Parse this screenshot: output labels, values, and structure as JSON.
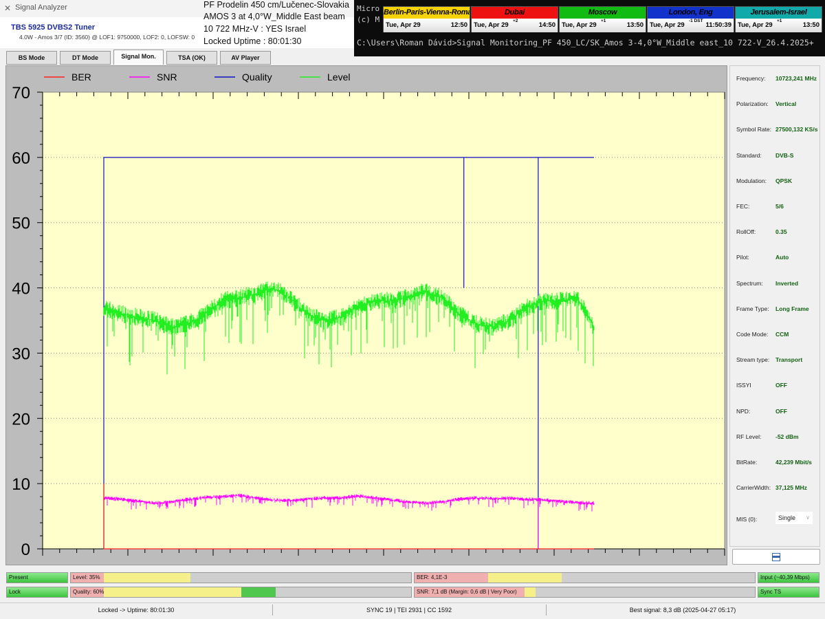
{
  "window": {
    "title": "Signal Analyzer",
    "icon": "satellite-icon"
  },
  "header": {
    "tuner": "TBS 5925 DVBS2 Tuner",
    "tuner_info": "4.0W - Amos 3/7 (ID: 3560) @ LOF1: 9750000, LOF2: 0, LOFSW: 0",
    "lines": [
      "PF Prodelin 450 cm/Lučenec-Slovakia",
      "AMOS 3 at 4,0°W_Middle East beam",
      "10 722 MHz-V : YES Israel",
      "Locked Uptime : 80:01:30"
    ]
  },
  "tabs": [
    {
      "label": "BS Mode"
    },
    {
      "label": "DT Mode"
    },
    {
      "label": "Signal Mon.",
      "active": true
    },
    {
      "label": "TSA (OK)"
    },
    {
      "label": "AV Player"
    }
  ],
  "terminal": {
    "lines": [
      "Micro",
      "(c) M"
    ],
    "prompt": "C:\\Users\\Roman Dávid>Signal Monitoring_PF 450_LC/SK_Amos 3-4,0°W_Middle east_10 722-V_26.4.2025+",
    "clocks": [
      {
        "city": "Berlin-Paris-Vienna-Roma",
        "date": "Tue, Apr 29",
        "time": "12:50",
        "offset": "",
        "color": "#f5d200",
        "text": "#000"
      },
      {
        "city": "Dubai",
        "date": "Tue, Apr 29",
        "time": "14:50",
        "offset": "+2",
        "color": "#ee1111",
        "text": "#000"
      },
      {
        "city": "Moscow",
        "date": "Tue, Apr 29",
        "time": "13:50",
        "offset": "+1",
        "color": "#11bb11",
        "text": "#000"
      },
      {
        "city": "London, Eng",
        "date": "Tue, Apr 29",
        "time": "11:50:39",
        "offset": "-1 DST",
        "color": "#1133cc",
        "text": "#000"
      },
      {
        "city": "Jerusalem-Israel",
        "date": "Tue, Apr 29",
        "time": "13:50",
        "offset": "+1",
        "color": "#11aaaa",
        "text": "#000"
      }
    ]
  },
  "chart_data": {
    "type": "line",
    "title": "",
    "xlabel": "",
    "ylabel": "",
    "ylim": [
      0,
      70
    ],
    "yticks": [
      0,
      10,
      20,
      30,
      40,
      50,
      60,
      70
    ],
    "grid": "horizontal dotted",
    "legend_position": "top-left",
    "background": "#ffffcc",
    "series": [
      {
        "name": "BER",
        "color": "#ff2020",
        "x": [
          0,
          0,
          0,
          29
        ],
        "y": [
          10,
          0,
          0,
          0
        ]
      },
      {
        "name": "SNR",
        "color": "#ff00ff",
        "x": [
          0,
          1,
          2,
          3,
          4,
          5,
          6,
          7,
          8,
          9,
          10,
          11,
          12,
          13,
          14,
          15,
          16,
          17,
          18,
          19,
          20,
          21,
          22,
          23,
          24,
          25,
          25.7,
          25.7,
          25.7,
          26,
          27,
          28,
          29
        ],
        "y": [
          7.8,
          7.6,
          7.3,
          7.0,
          7.2,
          7.6,
          7.9,
          8.0,
          8.2,
          7.8,
          7.5,
          7.4,
          7.6,
          7.8,
          7.8,
          8.1,
          7.8,
          7.5,
          7.2,
          7.0,
          7.2,
          7.6,
          7.8,
          7.7,
          7.8,
          7.6,
          7.6,
          0,
          7.6,
          7.5,
          7.3,
          7.1,
          7.0
        ]
      },
      {
        "name": "Quality",
        "color": "#1010c0",
        "x": [
          0,
          0,
          21.3,
          21.3,
          21.3,
          25.7,
          25.7,
          25.7,
          29
        ],
        "y": [
          0,
          60,
          60,
          40,
          60,
          60,
          0,
          60,
          60
        ]
      },
      {
        "name": "Level",
        "color": "#22ee22",
        "x": [
          0,
          1,
          2,
          3,
          4,
          5,
          6,
          7,
          8,
          9,
          10,
          11,
          12,
          13,
          14,
          15,
          16,
          17,
          18,
          19,
          20,
          21,
          22,
          23,
          24,
          25,
          26,
          27,
          28,
          29
        ],
        "y": [
          37,
          36,
          35.5,
          35,
          34,
          34.5,
          36,
          38,
          38.5,
          39,
          40,
          38.5,
          36,
          35,
          35.5,
          37,
          38,
          38,
          38.5,
          39.5,
          38.5,
          36,
          34.5,
          34,
          35,
          37,
          38,
          38,
          38.5,
          34
        ]
      }
    ]
  },
  "params": [
    {
      "label": "Frequency:",
      "value": "10723,241 MHz"
    },
    {
      "label": "Polarization:",
      "value": "Vertical"
    },
    {
      "label": "Symbol Rate:",
      "value": "27500,132 KS/s"
    },
    {
      "label": "Standard:",
      "value": "DVB-S"
    },
    {
      "label": "Modulation:",
      "value": "QPSK"
    },
    {
      "label": "FEC:",
      "value": "5/6"
    },
    {
      "label": "RollOff:",
      "value": "0.35"
    },
    {
      "label": "Pilot:",
      "value": "Auto"
    },
    {
      "label": "Spectrum:",
      "value": "Inverted"
    },
    {
      "label": "Frame Type:",
      "value": "Long Frame"
    },
    {
      "label": "Code Mode:",
      "value": "CCM"
    },
    {
      "label": "Stream type:",
      "value": "Transport"
    },
    {
      "label": "ISSYI",
      "value": "OFF"
    },
    {
      "label": "NPD:",
      "value": "OFF"
    },
    {
      "label": "RF Level:",
      "value": "-52 dBm"
    },
    {
      "label": "BitRate:",
      "value": "42,239 Mbit/s"
    },
    {
      "label": "CarrierWidth:",
      "value": "37,125 MHz"
    }
  ],
  "mis": {
    "label": "MIS (0):",
    "value": "Single"
  },
  "indicators": {
    "present": "Present",
    "lock": "Lock",
    "level": {
      "label": "Level: 35%",
      "percent": 35
    },
    "quality": {
      "label": "Quality: 60%",
      "percent": 60
    },
    "ber": {
      "label": "BER: 4,1E-3"
    },
    "snr": {
      "label": "SNR: 7,1 dB (Margin: 0,6 dB | Very Poor)"
    },
    "input": "Input (~40,39 Mbps)",
    "sync": "Sync TS"
  },
  "status": {
    "left": "Locked -> Uptime: 80:01:30",
    "center": "SYNC 19 | TEI 2931 | CC 1592",
    "right": "Best signal: 8,3 dB (2025-04-27 05:17)"
  }
}
